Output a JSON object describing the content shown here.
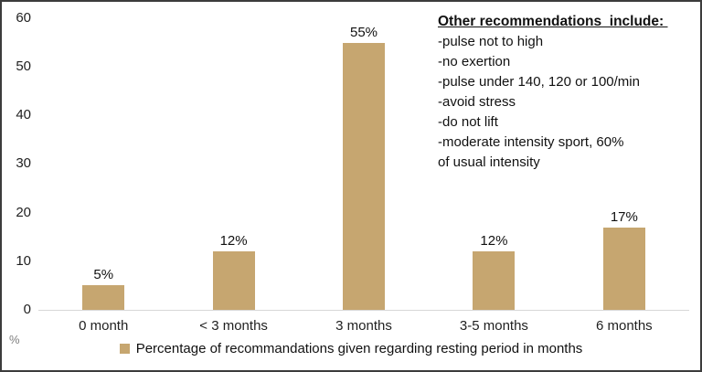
{
  "chart_data": {
    "type": "bar",
    "categories": [
      "0 month",
      "< 3 months",
      "3 months",
      "3-5 months",
      "6 months"
    ],
    "values": [
      5,
      12,
      55,
      12,
      17
    ],
    "value_labels": [
      "5%",
      "12%",
      "55%",
      "12%",
      "17%"
    ],
    "title": "",
    "xlabel": "",
    "ylabel": "%",
    "ylim": [
      0,
      60
    ],
    "yticks": [
      60,
      50,
      40,
      30,
      20,
      10,
      0
    ],
    "grid": false,
    "legend_position": "bottom",
    "series": [
      {
        "name": "Percentage of recommandations given regarding resting period in months",
        "values": [
          5,
          12,
          55,
          12,
          17
        ],
        "color": "#C6A670"
      }
    ]
  },
  "axis": {
    "yticks": [
      "60",
      "50",
      "40",
      "30",
      "20",
      "10",
      "0"
    ],
    "unit_label": "%"
  },
  "legend": {
    "label": "Percentage of recommandations given regarding resting period in months",
    "marker_color": "#C6A670"
  },
  "annotation": {
    "title": "Other recommendations  include: ",
    "lines": [
      "-pulse not to high",
      "-no exertion",
      "-pulse under 140, 120 or 100/min",
      "-avoid stress",
      "-do not lift",
      "-moderate intensity sport, 60%",
      "of usual intensity"
    ]
  },
  "colors": {
    "bar": "#C6A670",
    "axis_line": "#D8D8D8",
    "border": "#3C3C3C",
    "text": "#111111",
    "muted_text": "#7F7F7F"
  }
}
